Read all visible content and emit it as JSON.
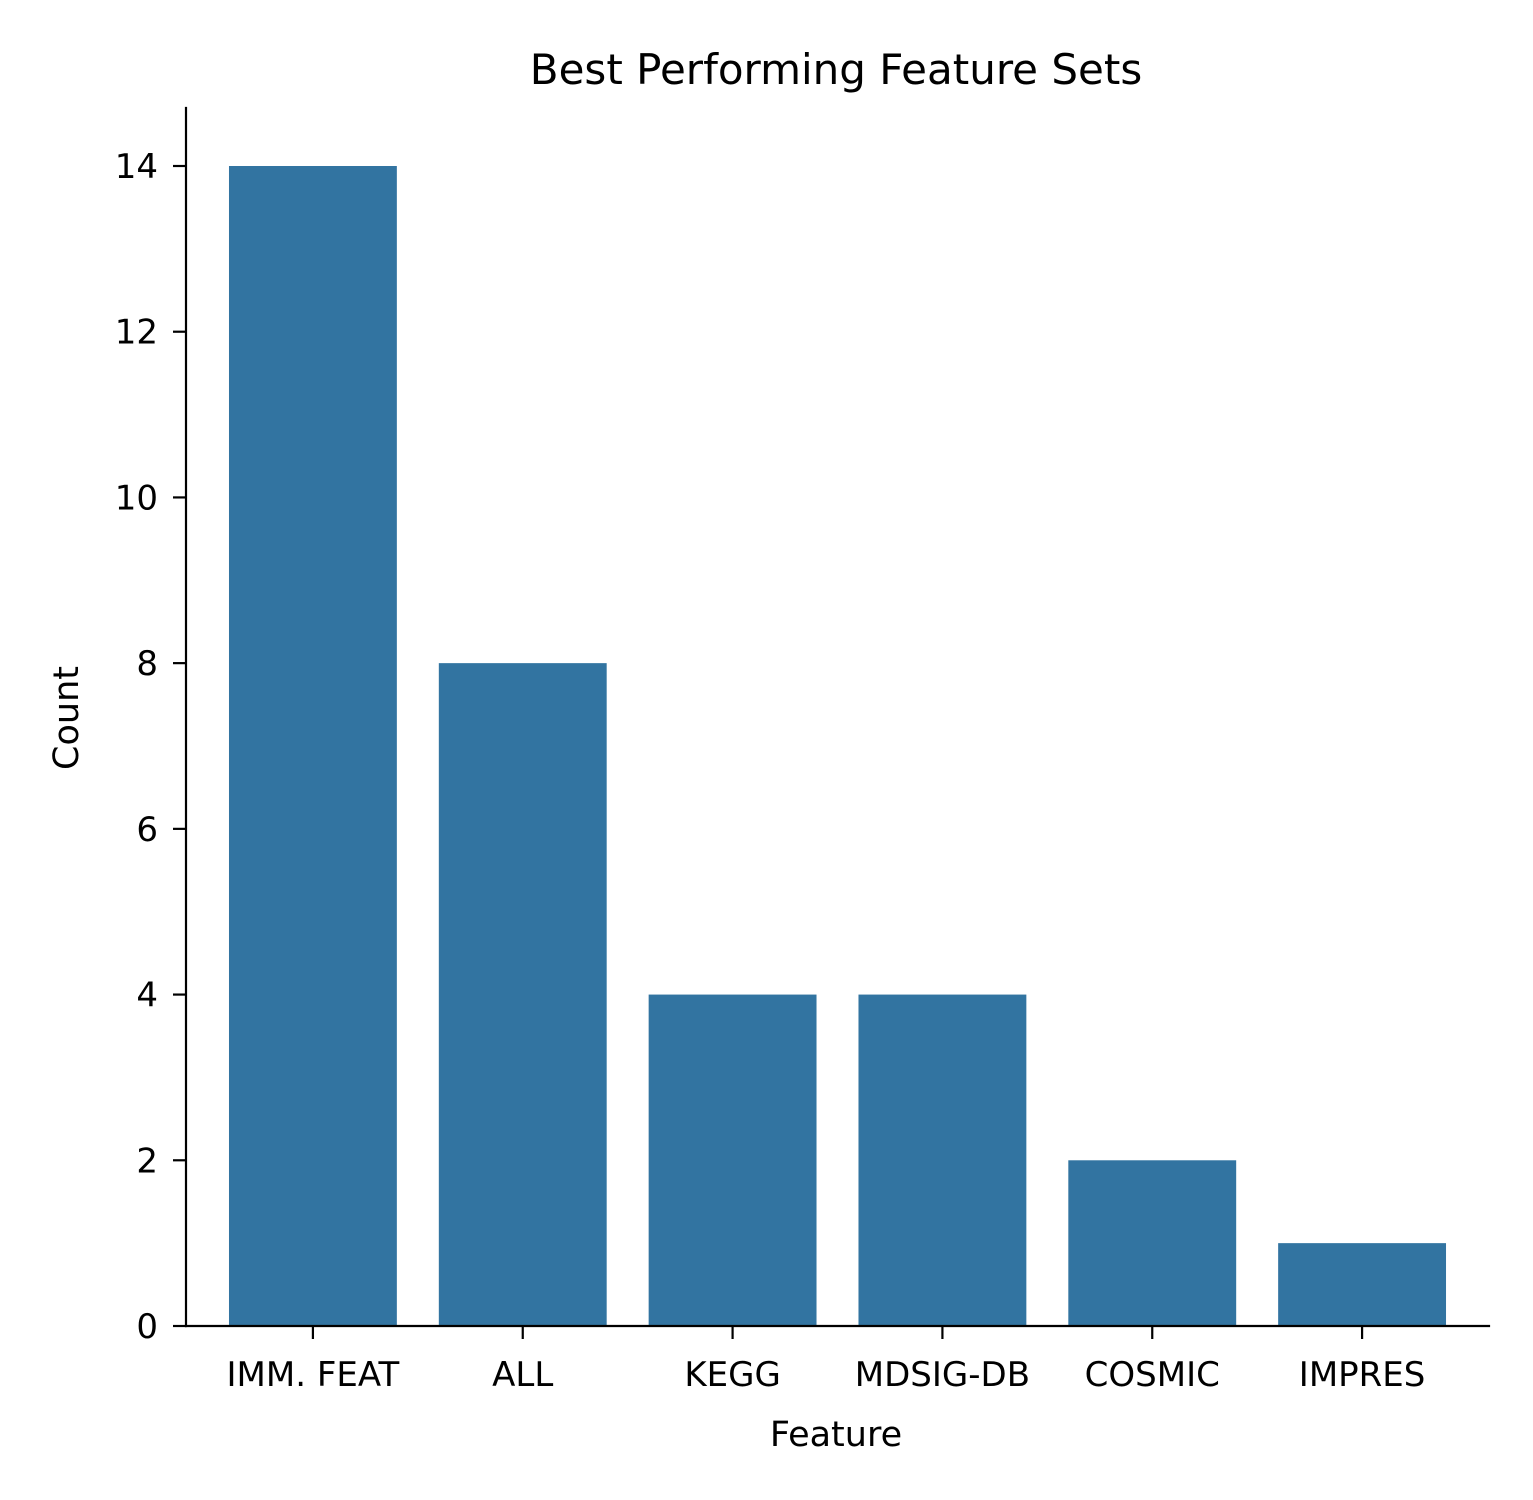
{
  "chart_data": {
    "type": "bar",
    "title": "Best Performing Feature Sets",
    "xlabel": "Feature",
    "ylabel": "Count",
    "categories": [
      "IMM. FEAT",
      "ALL",
      "KEGG",
      "MDSIG-DB",
      "COSMIC",
      "IMPRES"
    ],
    "values": [
      14,
      8,
      4,
      4,
      2,
      1
    ],
    "ylim": [
      0,
      14.7
    ],
    "yticks": [
      0,
      2,
      4,
      6,
      8,
      10,
      12,
      14
    ],
    "bar_color": "#3274a1",
    "grid": false,
    "legend": "none"
  }
}
